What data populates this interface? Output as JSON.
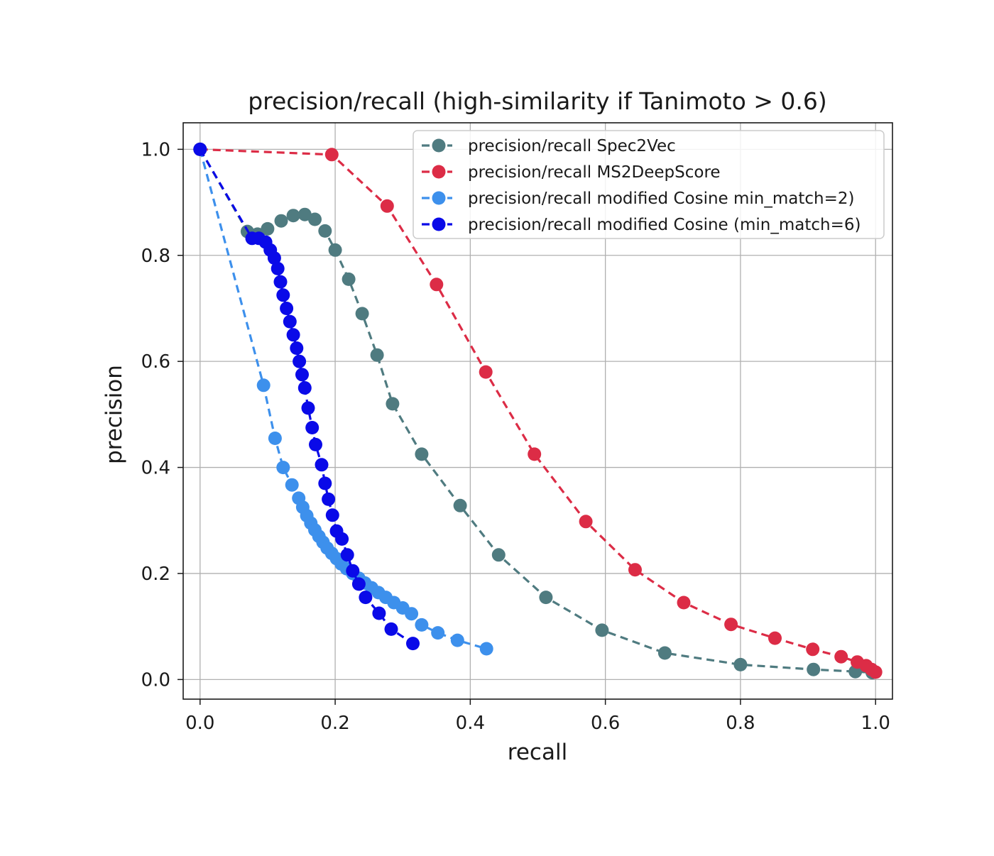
{
  "chart_data": {
    "type": "line",
    "title": "precision/recall (high-similarity if Tanimoto > 0.6)",
    "xlabel": "recall",
    "ylabel": "precision",
    "xlim": [
      -0.025,
      1.025
    ],
    "ylim": [
      -0.037,
      1.05
    ],
    "xticks": [
      "0.0",
      "0.2",
      "0.4",
      "0.6",
      "0.8",
      "1.0"
    ],
    "yticks": [
      "0.0",
      "0.2",
      "0.4",
      "0.6",
      "0.8",
      "1.0"
    ],
    "grid": true,
    "legend_position": "top-right",
    "series": [
      {
        "name": "precision/recall Spec2Vec",
        "color": "#4f7b80",
        "line_style": "dashed",
        "marker": "circle",
        "points": [
          [
            0.0,
            1.0
          ],
          [
            0.07,
            0.845
          ],
          [
            0.085,
            0.84
          ],
          [
            0.1,
            0.85
          ],
          [
            0.12,
            0.865
          ],
          [
            0.138,
            0.875
          ],
          [
            0.155,
            0.877
          ],
          [
            0.17,
            0.868
          ],
          [
            0.185,
            0.846
          ],
          [
            0.2,
            0.81
          ],
          [
            0.22,
            0.755
          ],
          [
            0.24,
            0.69
          ],
          [
            0.262,
            0.612
          ],
          [
            0.285,
            0.52
          ],
          [
            0.328,
            0.425
          ],
          [
            0.385,
            0.328
          ],
          [
            0.442,
            0.235
          ],
          [
            0.512,
            0.155
          ],
          [
            0.595,
            0.093
          ],
          [
            0.688,
            0.05
          ],
          [
            0.8,
            0.028
          ],
          [
            0.908,
            0.019
          ],
          [
            0.97,
            0.015
          ],
          [
            0.995,
            0.013
          ]
        ]
      },
      {
        "name": "precision/recall MS2DeepScore",
        "color": "#dc2c46",
        "line_style": "dashed",
        "marker": "circle",
        "points": [
          [
            0.0,
            1.0
          ],
          [
            0.195,
            0.99
          ],
          [
            0.277,
            0.893
          ],
          [
            0.35,
            0.745
          ],
          [
            0.423,
            0.58
          ],
          [
            0.495,
            0.425
          ],
          [
            0.571,
            0.298
          ],
          [
            0.644,
            0.207
          ],
          [
            0.716,
            0.145
          ],
          [
            0.786,
            0.104
          ],
          [
            0.851,
            0.078
          ],
          [
            0.907,
            0.057
          ],
          [
            0.949,
            0.043
          ],
          [
            0.973,
            0.033
          ],
          [
            0.986,
            0.026
          ],
          [
            0.994,
            0.019
          ],
          [
            1.0,
            0.014
          ]
        ]
      },
      {
        "name": "precision/recall modified Cosine min_match=2)",
        "color": "#3d90ec",
        "line_style": "dashed",
        "marker": "circle",
        "points": [
          [
            0.0,
            1.0
          ],
          [
            0.094,
            0.555
          ],
          [
            0.111,
            0.455
          ],
          [
            0.123,
            0.4
          ],
          [
            0.136,
            0.367
          ],
          [
            0.146,
            0.342
          ],
          [
            0.152,
            0.325
          ],
          [
            0.158,
            0.309
          ],
          [
            0.164,
            0.295
          ],
          [
            0.17,
            0.282
          ],
          [
            0.176,
            0.27
          ],
          [
            0.182,
            0.259
          ],
          [
            0.188,
            0.248
          ],
          [
            0.195,
            0.238
          ],
          [
            0.202,
            0.228
          ],
          [
            0.209,
            0.218
          ],
          [
            0.217,
            0.209
          ],
          [
            0.226,
            0.2
          ],
          [
            0.235,
            0.191
          ],
          [
            0.244,
            0.182
          ],
          [
            0.254,
            0.173
          ],
          [
            0.264,
            0.164
          ],
          [
            0.275,
            0.155
          ],
          [
            0.287,
            0.145
          ],
          [
            0.3,
            0.135
          ],
          [
            0.313,
            0.124
          ],
          [
            0.328,
            0.103
          ],
          [
            0.352,
            0.088
          ],
          [
            0.381,
            0.074
          ],
          [
            0.424,
            0.058
          ]
        ]
      },
      {
        "name": "precision/recall modified Cosine (min_match=6)",
        "color": "#0a0ae8",
        "line_style": "dashed",
        "marker": "circle",
        "points": [
          [
            0.0,
            1.0
          ],
          [
            0.077,
            0.832
          ],
          [
            0.087,
            0.832
          ],
          [
            0.097,
            0.825
          ],
          [
            0.104,
            0.81
          ],
          [
            0.11,
            0.795
          ],
          [
            0.115,
            0.775
          ],
          [
            0.119,
            0.75
          ],
          [
            0.123,
            0.725
          ],
          [
            0.128,
            0.7
          ],
          [
            0.133,
            0.675
          ],
          [
            0.138,
            0.65
          ],
          [
            0.143,
            0.625
          ],
          [
            0.147,
            0.6
          ],
          [
            0.151,
            0.575
          ],
          [
            0.155,
            0.55
          ],
          [
            0.16,
            0.512
          ],
          [
            0.166,
            0.475
          ],
          [
            0.171,
            0.443
          ],
          [
            0.18,
            0.405
          ],
          [
            0.185,
            0.37
          ],
          [
            0.19,
            0.34
          ],
          [
            0.196,
            0.31
          ],
          [
            0.202,
            0.28
          ],
          [
            0.21,
            0.265
          ],
          [
            0.218,
            0.235
          ],
          [
            0.226,
            0.205
          ],
          [
            0.235,
            0.18
          ],
          [
            0.245,
            0.155
          ],
          [
            0.265,
            0.125
          ],
          [
            0.283,
            0.095
          ],
          [
            0.315,
            0.068
          ]
        ]
      }
    ]
  }
}
